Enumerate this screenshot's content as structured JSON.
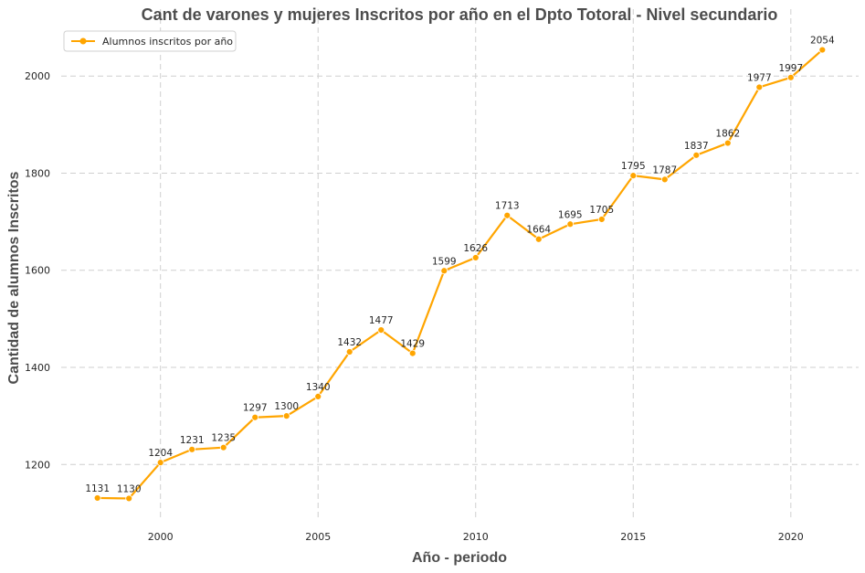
{
  "chart_data": {
    "type": "line",
    "title": "Cant de varones y mujeres Inscritos por año en el Dpto Totoral -  Nivel secundario",
    "xlabel": "Año - periodo",
    "ylabel": "Cantidad de alumnos Inscritos",
    "x": [
      1998,
      1999,
      2000,
      2001,
      2002,
      2003,
      2004,
      2005,
      2006,
      2007,
      2008,
      2009,
      2010,
      2011,
      2012,
      2013,
      2014,
      2015,
      2016,
      2017,
      2018,
      2019,
      2020,
      2021
    ],
    "series": [
      {
        "name": "Alumnos inscritos por año",
        "color": "#ffa500",
        "values": [
          1131,
          1130,
          1204,
          1231,
          1235,
          1297,
          1300,
          1340,
          1432,
          1477,
          1429,
          1599,
          1626,
          1713,
          1664,
          1695,
          1705,
          1795,
          1787,
          1837,
          1862,
          1977,
          1997,
          2054
        ]
      }
    ],
    "xticks": [
      "2000",
      "2005",
      "2010",
      "2015",
      "2020"
    ],
    "yticks": [
      "1200",
      "1400",
      "1600",
      "1800",
      "2000"
    ],
    "xlim": [
      1996.85,
      2022.15
    ],
    "ylim": [
      1083.8,
      2100.2
    ],
    "grid": true,
    "legend_position": "top-left"
  }
}
